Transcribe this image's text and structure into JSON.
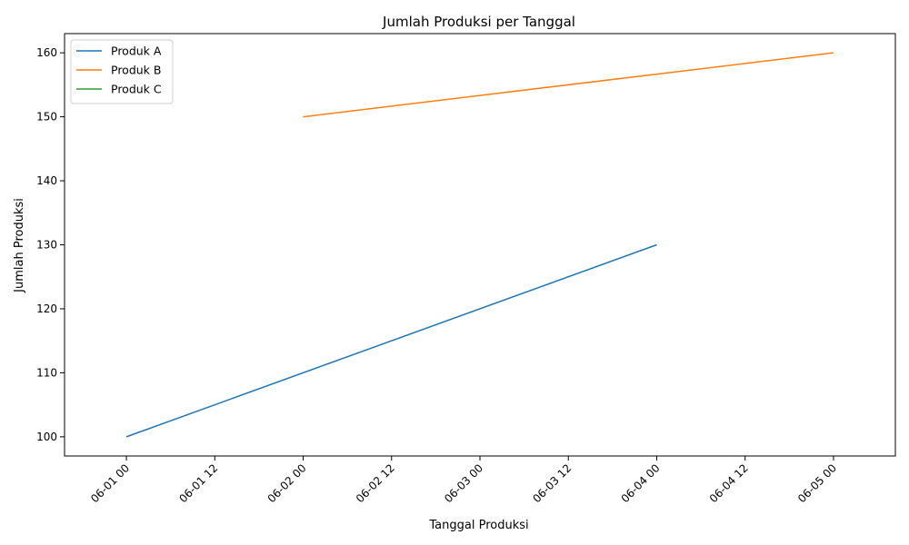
{
  "chart_data": {
    "type": "line",
    "title": "Jumlah Produksi per Tanggal",
    "xlabel": "Tanggal Produksi",
    "ylabel": "Jumlah Produksi",
    "x_ticks": [
      "06-01 00",
      "06-01 12",
      "06-02 00",
      "06-02 12",
      "06-03 00",
      "06-03 12",
      "06-04 00",
      "06-04 12",
      "06-05 00"
    ],
    "x_tick_values": [
      "2024-06-01T00:00",
      "2024-06-01T12:00",
      "2024-06-02T00:00",
      "2024-06-02T12:00",
      "2024-06-03T00:00",
      "2024-06-03T12:00",
      "2024-06-04T00:00",
      "2024-06-04T12:00",
      "2024-06-05T00:00"
    ],
    "xlim": [
      "2024-05-31T15:36",
      "2024-06-05T08:24"
    ],
    "y_ticks": [
      100,
      110,
      120,
      130,
      140,
      150,
      160
    ],
    "ylim": [
      97,
      163
    ],
    "grid": false,
    "legend": "top-left",
    "series": [
      {
        "name": "Produk A",
        "color": "#1f77b4",
        "x": [
          "2024-06-01T00:00",
          "2024-06-04T00:00"
        ],
        "y": [
          100,
          130
        ]
      },
      {
        "name": "Produk B",
        "color": "#ff7f0e",
        "x": [
          "2024-06-02T00:00",
          "2024-06-05T00:00"
        ],
        "y": [
          150,
          160
        ]
      },
      {
        "name": "Produk C",
        "color": "#2ca02c",
        "x": [],
        "y": []
      }
    ]
  }
}
